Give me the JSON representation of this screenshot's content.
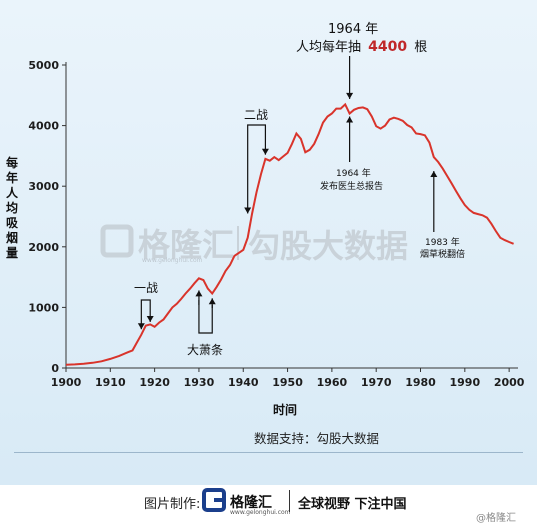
{
  "chart_data": {
    "type": "line",
    "title": "",
    "xlabel": "时间",
    "ylabel": "每年人均吸烟量",
    "xlim": [
      1900,
      2002
    ],
    "ylim": [
      0,
      5000
    ],
    "x_ticks": [
      1900,
      1910,
      1920,
      1930,
      1940,
      1950,
      1960,
      1970,
      1980,
      1990,
      2000
    ],
    "y_ticks": [
      0,
      1000,
      2000,
      3000,
      4000,
      5000
    ],
    "grid": false,
    "line_color": "#d9342b",
    "series": [
      {
        "x": [
          1900,
          1902,
          1904,
          1906,
          1908,
          1910,
          1912,
          1914,
          1915,
          1916,
          1917,
          1918,
          1919,
          1920,
          1921,
          1922,
          1923,
          1924,
          1925,
          1926,
          1927,
          1928,
          1929,
          1930,
          1931,
          1932,
          1933,
          1934,
          1935,
          1936,
          1937,
          1938,
          1939,
          1940,
          1941,
          1942,
          1943,
          1944,
          1945,
          1946,
          1947,
          1948,
          1949,
          1950,
          1951,
          1952,
          1953,
          1954,
          1955,
          1956,
          1957,
          1958,
          1959,
          1960,
          1961,
          1962,
          1963,
          1964,
          1965,
          1966,
          1967,
          1968,
          1969,
          1970,
          1971,
          1972,
          1973,
          1974,
          1975,
          1976,
          1977,
          1978,
          1979,
          1980,
          1981,
          1982,
          1983,
          1984,
          1985,
          1986,
          1987,
          1988,
          1989,
          1990,
          1991,
          1992,
          1993,
          1994,
          1995,
          1996,
          1997,
          1998,
          1999,
          2000,
          2001
        ],
        "y": [
          54,
          60,
          70,
          85,
          110,
          150,
          200,
          260,
          290,
          420,
          550,
          700,
          720,
          680,
          750,
          800,
          900,
          1000,
          1060,
          1140,
          1230,
          1310,
          1400,
          1480,
          1450,
          1310,
          1230,
          1340,
          1460,
          1600,
          1700,
          1850,
          1900,
          1950,
          2150,
          2550,
          2900,
          3200,
          3450,
          3420,
          3480,
          3430,
          3490,
          3550,
          3700,
          3870,
          3780,
          3560,
          3600,
          3700,
          3860,
          4050,
          4150,
          4200,
          4280,
          4280,
          4350,
          4200,
          4260,
          4290,
          4300,
          4270,
          4150,
          3990,
          3950,
          4000,
          4100,
          4130,
          4110,
          4080,
          4010,
          3970,
          3870,
          3860,
          3840,
          3720,
          3480,
          3400,
          3290,
          3170,
          3050,
          2920,
          2800,
          2690,
          2610,
          2560,
          2540,
          2520,
          2480,
          2380,
          2260,
          2150,
          2110,
          2080,
          2050
        ]
      }
    ],
    "annotations": {
      "ww1": "一战",
      "ww2": "二战",
      "depression": "大萧条",
      "peak_year": "1964 年",
      "peak_text_prefix": "人均每年抽",
      "peak_value": "4400",
      "peak_text_suffix": "根",
      "report_year": "1964 年",
      "report_text": "发布医生总报告",
      "tax_year": "1983 年",
      "tax_text": "烟草税翻倍"
    }
  },
  "watermark": {
    "brand": "格隆汇",
    "domain": "www.gelonghui.com",
    "partner": "勾股大数据"
  },
  "source": "数据支持：勾股大数据",
  "footer": {
    "label": "图片制作:",
    "brand": "格隆汇",
    "domain": "www.gelonghui.com",
    "slogan": "全球视野 下注中国",
    "handle": "@格隆汇"
  },
  "colors": {
    "line": "#d9342b",
    "peak_highlight": "#c0282a",
    "logo_blue": "#1b3f8c"
  }
}
